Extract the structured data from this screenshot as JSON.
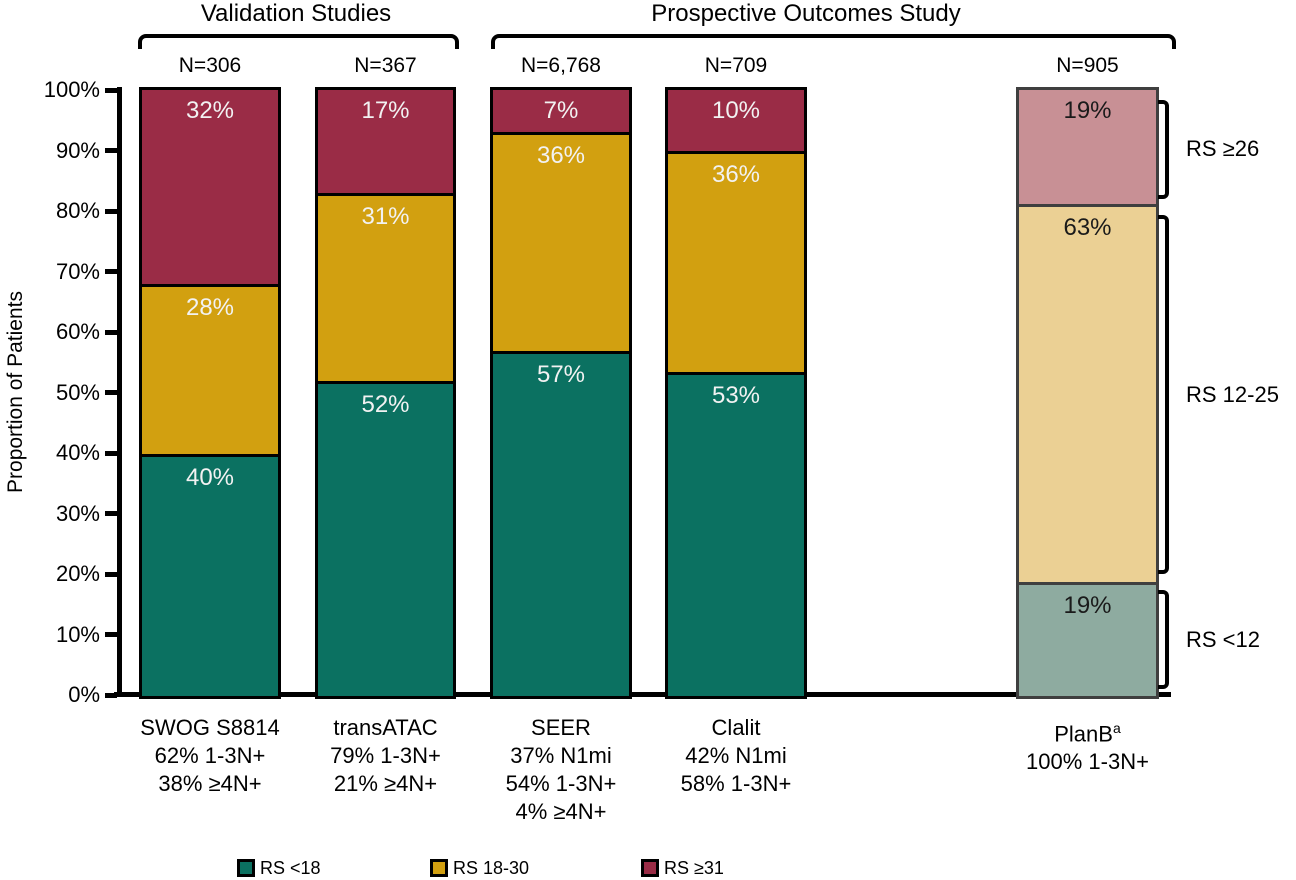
{
  "chart_data": {
    "type": "bar",
    "subtype": "100%-stacked-vertical",
    "ylabel": "Proportion of Patients",
    "ylim": [
      0,
      100
    ],
    "y_ticks": [
      "0%",
      "10%",
      "20%",
      "30%",
      "40%",
      "50%",
      "60%",
      "70%",
      "80%",
      "90%",
      "100%"
    ],
    "grid": false,
    "groups": [
      {
        "label": "Validation Studies",
        "bars": [
          "SWOG S8814",
          "transATAC"
        ]
      },
      {
        "label": "Prospective Outcomes Study",
        "bars": [
          "SEER",
          "Clalit",
          "PlanB"
        ]
      }
    ],
    "legend": [
      {
        "label": "RS <18",
        "color": "#0B7161"
      },
      {
        "label": "RS 18-30",
        "color": "#D2A010"
      },
      {
        "label": "RS ≥31",
        "color": "#9A2C46"
      }
    ],
    "legend_position": "bottom",
    "bars": [
      {
        "name": "SWOG S8814",
        "n_label": "N=306",
        "x_lines": [
          "SWOG S8814",
          "62% 1-3N+",
          "38% ≥4N+"
        ],
        "label_color": "#F2F2F2",
        "border_color": "#000000",
        "segments": [
          {
            "series": "RS <18",
            "value": 40,
            "label": "40%",
            "color": "#0B7161"
          },
          {
            "series": "RS 18-30",
            "value": 28,
            "label": "28%",
            "color": "#D2A010"
          },
          {
            "series": "RS ≥31",
            "value": 32,
            "label": "32%",
            "color": "#9A2C46"
          }
        ]
      },
      {
        "name": "transATAC",
        "n_label": "N=367",
        "x_lines": [
          "transATAC",
          "79% 1-3N+",
          "21% ≥4N+"
        ],
        "label_color": "#F2F2F2",
        "border_color": "#000000",
        "segments": [
          {
            "series": "RS <18",
            "value": 52,
            "label": "52%",
            "color": "#0B7161"
          },
          {
            "series": "RS 18-30",
            "value": 31,
            "label": "31%",
            "color": "#D2A010"
          },
          {
            "series": "RS ≥31",
            "value": 17,
            "label": "17%",
            "color": "#9A2C46"
          }
        ]
      },
      {
        "name": "SEER",
        "n_label": "N=6,768",
        "x_lines": [
          "SEER",
          "37% N1mi",
          "54% 1-3N+",
          "4% ≥4N+"
        ],
        "label_color": "#F2F2F2",
        "border_color": "#000000",
        "segments": [
          {
            "series": "RS <18",
            "value": 57,
            "label": "57%",
            "color": "#0B7161"
          },
          {
            "series": "RS 18-30",
            "value": 36,
            "label": "36%",
            "color": "#D2A010"
          },
          {
            "series": "RS ≥31",
            "value": 7,
            "label": "7%",
            "color": "#9A2C46"
          }
        ]
      },
      {
        "name": "Clalit",
        "n_label": "N=709",
        "x_lines": [
          "Clalit",
          "42% N1mi",
          "58% 1-3N+"
        ],
        "label_color": "#F2F2F2",
        "border_color": "#000000",
        "segments": [
          {
            "series": "RS <18",
            "value": 53,
            "label": "53%",
            "color": "#0B7161"
          },
          {
            "series": "RS 18-30",
            "value": 36,
            "label": "36%",
            "color": "#D2A010"
          },
          {
            "series": "RS ≥31",
            "value": 10,
            "label": "10%",
            "color": "#9A2C46"
          }
        ]
      },
      {
        "name": "PlanB",
        "name_sup": "a",
        "n_label": "N=905",
        "x_lines": [
          "PlanB",
          "100% 1-3N+"
        ],
        "label_color": "#1A1A1A",
        "border_color": "#3F3F3F",
        "segments": [
          {
            "series": "RS <12",
            "value": 19,
            "label": "19%",
            "color": "#8EABA0"
          },
          {
            "series": "RS 12-25",
            "value": 63,
            "label": "63%",
            "color": "#EBD094"
          },
          {
            "series": "RS ≥26",
            "value": 19,
            "label": "19%",
            "color": "#C89095"
          }
        ]
      }
    ],
    "right_annotations": [
      {
        "label": "RS ≥26",
        "span_pct": [
          81,
          100
        ]
      },
      {
        "label": "RS 12-25",
        "span_pct": [
          19,
          81
        ]
      },
      {
        "label": "RS <12",
        "span_pct": [
          0,
          19
        ]
      }
    ]
  }
}
